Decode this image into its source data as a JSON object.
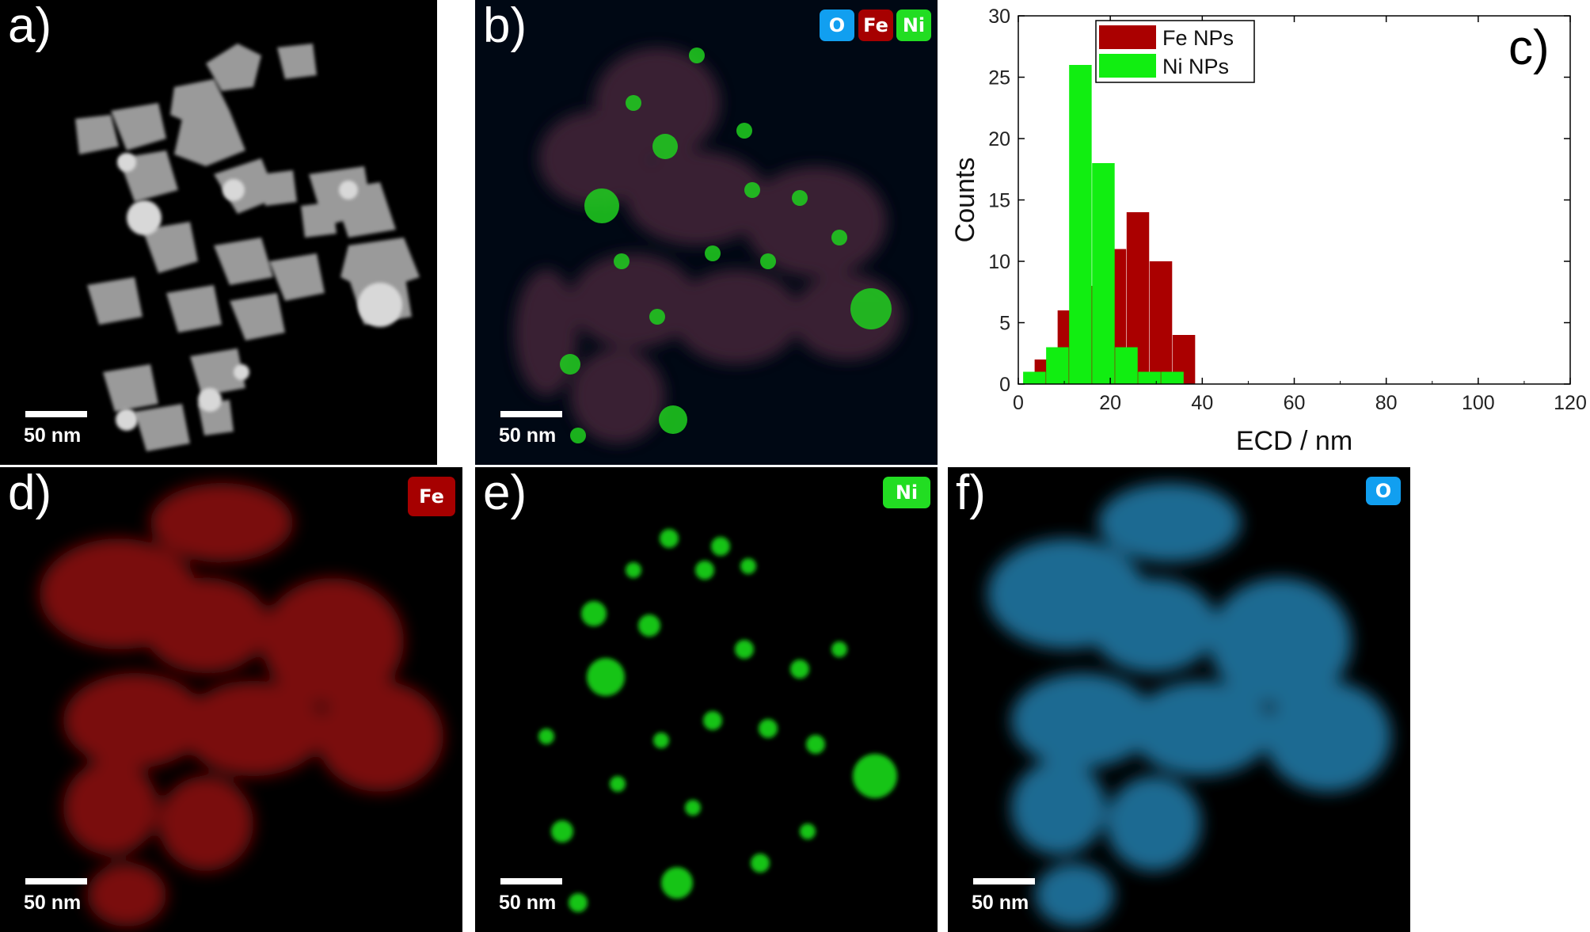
{
  "figure": {
    "panels": {
      "a": {
        "letter": "a)",
        "scale": "50 nm"
      },
      "b": {
        "letter": "b)",
        "scale": "50 nm",
        "badges": [
          "O",
          "Fe",
          "Ni"
        ]
      },
      "c": {
        "letter": "c)"
      },
      "d": {
        "letter": "d)",
        "scale": "50 nm",
        "badge": "Fe"
      },
      "e": {
        "letter": "e)",
        "scale": "50 nm",
        "badge": "Ni"
      },
      "f": {
        "letter": "f)",
        "scale": "50 nm",
        "badge": "O"
      }
    },
    "colors": {
      "fe": "#a60000",
      "ni": "#11e011",
      "o": "#1aa5e8",
      "ni_badge": "#22dd22",
      "o_badge": "#119ff0"
    }
  },
  "chart_data": {
    "type": "bar",
    "title": "",
    "xlabel": "ECD / nm",
    "ylabel": "Counts",
    "xlim": [
      0,
      120
    ],
    "ylim": [
      0,
      30
    ],
    "xticks": [
      0,
      20,
      40,
      60,
      80,
      100,
      120
    ],
    "yticks": [
      0,
      5,
      10,
      15,
      20,
      25,
      30
    ],
    "legend_position": "top-left",
    "series": [
      {
        "name": "Fe NPs",
        "color": "#aa0000",
        "x": [
          6,
          11,
          16,
          21,
          26,
          31,
          36
        ],
        "values": [
          2,
          6,
          8,
          11,
          14,
          10,
          4
        ]
      },
      {
        "name": "Ni NPs",
        "color": "#11ee11",
        "x": [
          3.5,
          8.5,
          13.5,
          18.5,
          23.5,
          28.5,
          33.5
        ],
        "values": [
          1,
          3,
          26,
          18,
          3,
          1,
          1
        ]
      }
    ]
  }
}
